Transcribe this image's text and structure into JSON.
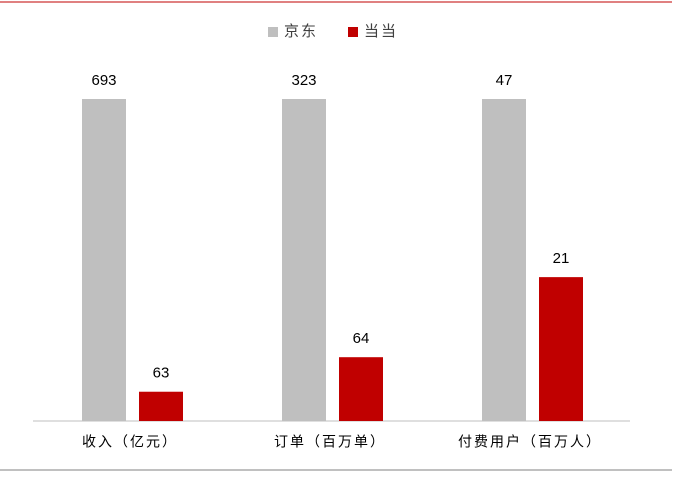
{
  "chart_data": {
    "type": "bar",
    "categories": [
      "收入（亿元）",
      "订单（百万单）",
      "付费用户（百万人）"
    ],
    "series": [
      {
        "name": "京东",
        "color": "#bfbfbf",
        "values": [
          693,
          323,
          47
        ]
      },
      {
        "name": "当当",
        "color": "#c00000",
        "values": [
          63,
          64,
          21
        ]
      }
    ],
    "legend": "top"
  }
}
